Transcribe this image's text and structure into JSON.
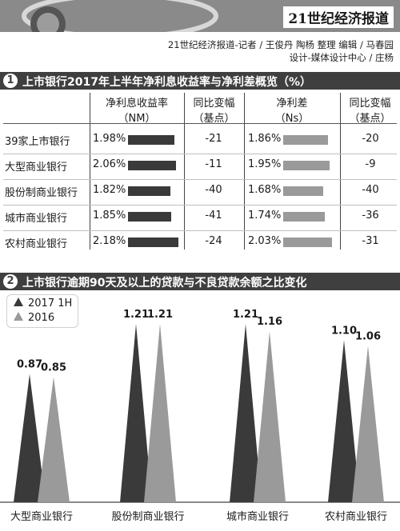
{
  "header": {
    "paper_title": "21世纪经济报道",
    "credit_line_1": "21世纪经济报道-记者 / 王俊丹 陶杨 整理    编辑 / 马春园",
    "credit_line_2": "设计-媒体设计中心 / 庄杨"
  },
  "sections": [
    {
      "number": "1",
      "title": "上市银行2017年上半年净利息收益率与净利差概览（%）"
    },
    {
      "number": "2",
      "title": "上市银行逾期90天及以上的贷款与不良贷款余额之比变化"
    }
  ],
  "colors": {
    "dark": "#3a3a3a",
    "light": "#9a9a9a",
    "bar": "#3f3f3f"
  },
  "chart_data": [
    {
      "type": "table",
      "columns": [
        {
          "label": "净利息收益率",
          "sub": "（NM）"
        },
        {
          "label": "同比变幅",
          "sub": "（基点）"
        },
        {
          "label": "净利差",
          "sub": "（Ns）"
        },
        {
          "label": "同比变幅",
          "sub": "（基点）"
        }
      ],
      "rows": [
        {
          "name": "39家上市银行",
          "nim": "1.98%",
          "nim_value": 1.98,
          "nim_change": "-21",
          "ns": "1.86%",
          "ns_value": 1.86,
          "ns_change": "-20"
        },
        {
          "name": "大型商业银行",
          "nim": "2.06%",
          "nim_value": 2.06,
          "nim_change": "-11",
          "ns": "1.95%",
          "ns_value": 1.95,
          "ns_change": "-9"
        },
        {
          "name": "股份制商业银行",
          "nim": "1.82%",
          "nim_value": 1.82,
          "nim_change": "-40",
          "ns": "1.68%",
          "ns_value": 1.68,
          "ns_change": "-40"
        },
        {
          "name": "城市商业银行",
          "nim": "1.85%",
          "nim_value": 1.85,
          "nim_change": "-41",
          "ns": "1.74%",
          "ns_value": 1.74,
          "ns_change": "-36"
        },
        {
          "name": "农村商业银行",
          "nim": "2.18%",
          "nim_value": 2.18,
          "nim_change": "-24",
          "ns": "2.03%",
          "ns_value": 2.03,
          "ns_change": "-31"
        }
      ]
    },
    {
      "type": "bar",
      "categories": [
        "大型商业银行",
        "股份制商业银行",
        "城市商业银行",
        "农村商业银行"
      ],
      "series": [
        {
          "name": "2017 1H",
          "values": [
            0.87,
            1.21,
            1.21,
            1.1
          ],
          "labels": [
            "0.87",
            "1.21",
            "1.21",
            "1.10"
          ]
        },
        {
          "name": "2016",
          "values": [
            0.85,
            1.21,
            1.16,
            1.06
          ],
          "labels": [
            "0.85",
            "1.21",
            "1.16",
            "1.06"
          ]
        }
      ],
      "legend_position": "top-left",
      "ylim": [
        0,
        1.3
      ]
    }
  ]
}
